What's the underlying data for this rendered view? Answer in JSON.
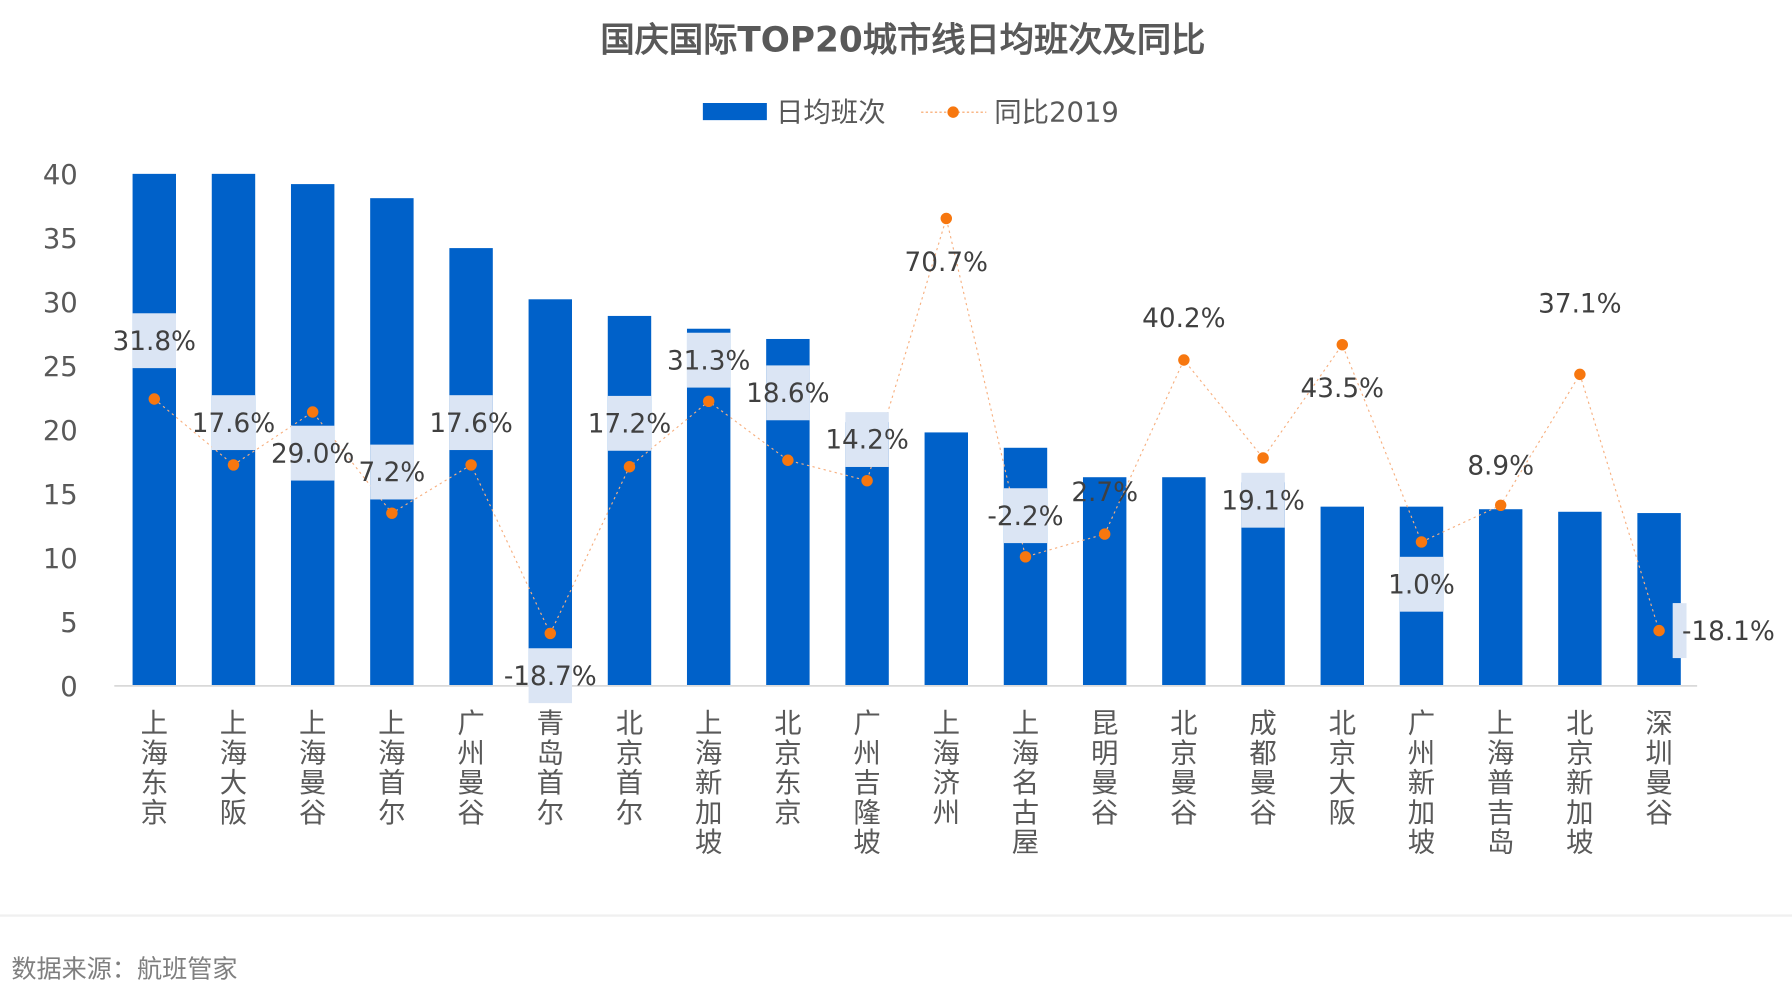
{
  "chart_data": {
    "type": "bar",
    "title": "国庆国际TOP20城市线日均班次及同比",
    "legend": {
      "placement": "top-center",
      "bar_label": "日均班次",
      "line_label": "同比2019"
    },
    "categories": [
      "上海东京",
      "上海大阪",
      "上海曼谷",
      "上海首尔",
      "广州曼谷",
      "青岛首尔",
      "北京首尔",
      "上海新加坡",
      "北京东京",
      "广州吉隆坡",
      "上海济州",
      "上海名古屋",
      "昆明曼谷",
      "北京曼谷",
      "成都曼谷",
      "北京大阪",
      "广州新加坡",
      "上海普吉岛",
      "北京新加坡",
      "深圳曼谷"
    ],
    "series": [
      {
        "name": "日均班次",
        "type": "bar",
        "values": [
          40.0,
          40.0,
          39.2,
          38.1,
          34.2,
          30.2,
          28.9,
          27.9,
          27.1,
          20.6,
          19.8,
          18.6,
          16.3,
          16.3,
          15.9,
          14.0,
          14.0,
          13.8,
          13.6,
          13.5
        ]
      },
      {
        "name": "同比2019",
        "type": "line",
        "axis": "secondary",
        "values": [
          31.8,
          17.6,
          29.0,
          7.2,
          17.6,
          -18.7,
          17.2,
          31.3,
          18.6,
          14.2,
          70.7,
          -2.2,
          2.7,
          40.2,
          19.1,
          43.5,
          1.0,
          8.9,
          37.1,
          -18.1
        ],
        "labels": [
          "31.8%",
          "17.6%",
          "29.0%",
          "7.2%",
          "17.6%",
          "-18.7%",
          "17.2%",
          "31.3%",
          "18.6%",
          "14.2%",
          "70.7%",
          "-2.2%",
          "2.7%",
          "40.2%",
          "19.1%",
          "43.5%",
          "1.0%",
          "8.9%",
          "37.1%",
          "-18.1%"
        ]
      }
    ],
    "ylim": [
      0,
      40
    ],
    "y2lim": [
      -30,
      80.3
    ],
    "yticks": [
      "0",
      "5",
      "10",
      "15",
      "20",
      "25",
      "30",
      "35",
      "40"
    ],
    "grid": false,
    "colors": {
      "bar": "#0061c9",
      "line": "#f7770f",
      "label_bg": "#dbe5f4"
    }
  },
  "footer": {
    "source": "数据来源：航班管家"
  }
}
